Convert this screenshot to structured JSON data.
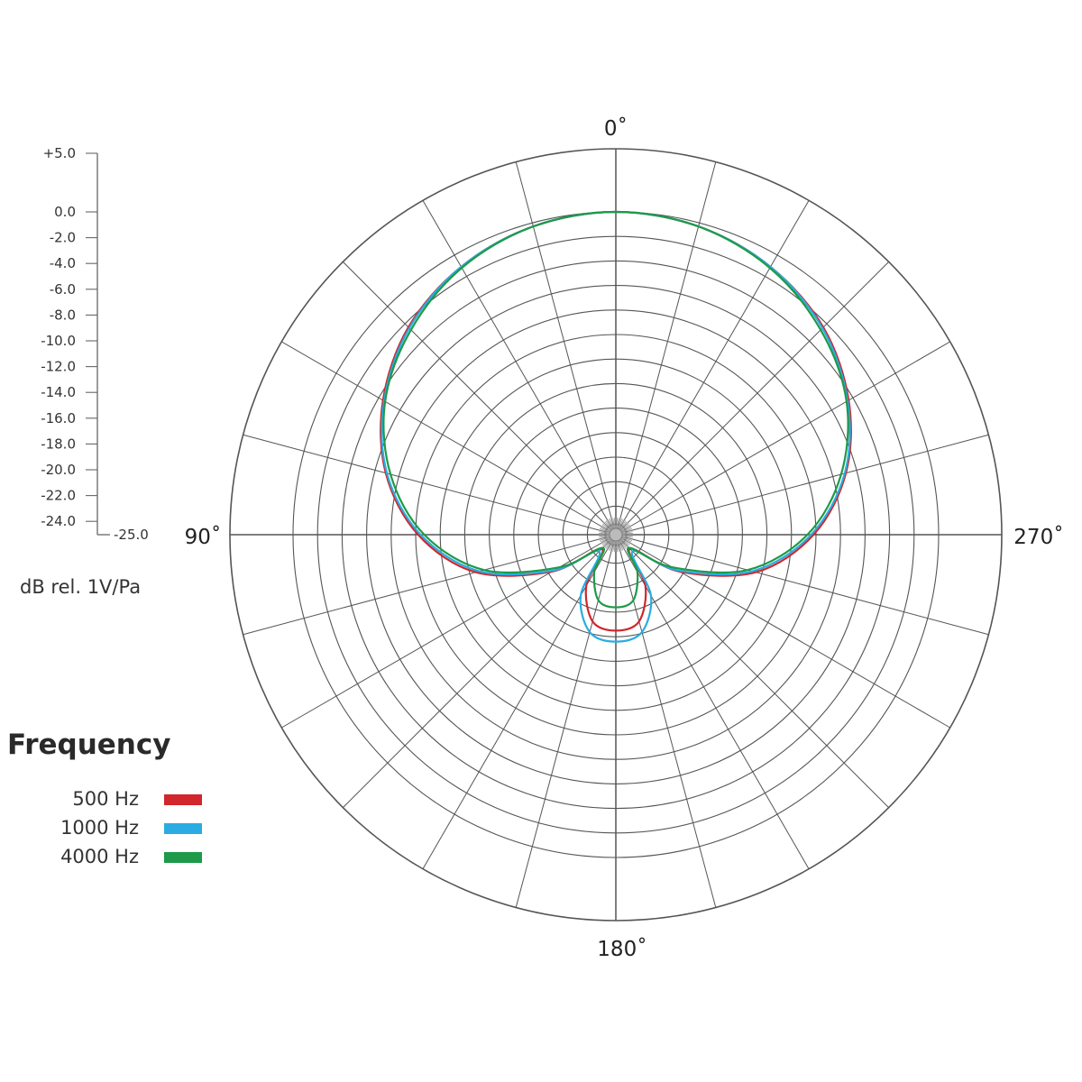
{
  "chart_data": {
    "type": "polar",
    "angle_labels": [
      {
        "angle": 0,
        "text": "0˚"
      },
      {
        "angle": 90,
        "text": "90˚"
      },
      {
        "angle": 180,
        "text": "180˚"
      },
      {
        "angle": 270,
        "text": "270˚"
      }
    ],
    "radial_axis": {
      "min": -25.0,
      "max": 5.0,
      "grid_step": 2,
      "tick_labels": [
        "+5.0",
        "0.0",
        "-2.0",
        "-4.0",
        "-6.0",
        "-8.0",
        "-10.0",
        "-12.0",
        "-14.0",
        "-16.0",
        "-18.0",
        "-20.0",
        "-22.0",
        "-24.0",
        "-25.0"
      ],
      "tick_values": [
        5,
        0,
        -2,
        -4,
        -6,
        -8,
        -10,
        -12,
        -14,
        -16,
        -18,
        -20,
        -22,
        -24,
        -25
      ],
      "unit_label": "dB rel. 1V/Pa"
    },
    "angular_grid_step_deg": 15,
    "legend": {
      "title": "Frequency",
      "placement": "left"
    },
    "series": [
      {
        "name": "500 Hz",
        "color": "#d0262c",
        "points": [
          {
            "angle": 0,
            "db": 0
          },
          {
            "angle": 15,
            "db": -0.3
          },
          {
            "angle": 30,
            "db": -1.1
          },
          {
            "angle": 45,
            "db": -2.4
          },
          {
            "angle": 60,
            "db": -4.4
          },
          {
            "angle": 75,
            "db": -6.9
          },
          {
            "angle": 90,
            "db": -10.2
          },
          {
            "angle": 105,
            "db": -14.5
          },
          {
            "angle": 120,
            "db": -20.3
          },
          {
            "angle": 135,
            "db": -24.7
          },
          {
            "angle": 150,
            "db": -21.5
          },
          {
            "angle": 165,
            "db": -19.0
          },
          {
            "angle": 180,
            "db": -18.5
          },
          {
            "angle": 195,
            "db": -19.0
          },
          {
            "angle": 210,
            "db": -21.5
          },
          {
            "angle": 225,
            "db": -24.7
          },
          {
            "angle": 240,
            "db": -20.3
          },
          {
            "angle": 255,
            "db": -14.5
          },
          {
            "angle": 270,
            "db": -10.2
          },
          {
            "angle": 285,
            "db": -6.9
          },
          {
            "angle": 300,
            "db": -4.4
          },
          {
            "angle": 315,
            "db": -2.4
          },
          {
            "angle": 330,
            "db": -1.1
          },
          {
            "angle": 345,
            "db": -0.3
          },
          {
            "angle": 360,
            "db": 0
          }
        ]
      },
      {
        "name": "1000 Hz",
        "color": "#2aace2",
        "points": [
          {
            "angle": 0,
            "db": 0
          },
          {
            "angle": 15,
            "db": -0.3
          },
          {
            "angle": 30,
            "db": -1.1
          },
          {
            "angle": 45,
            "db": -2.5
          },
          {
            "angle": 60,
            "db": -4.5
          },
          {
            "angle": 75,
            "db": -7.0
          },
          {
            "angle": 90,
            "db": -10.4
          },
          {
            "angle": 105,
            "db": -14.8
          },
          {
            "angle": 120,
            "db": -20.5
          },
          {
            "angle": 135,
            "db": -24.4
          },
          {
            "angle": 150,
            "db": -20.6
          },
          {
            "angle": 165,
            "db": -18.1
          },
          {
            "angle": 180,
            "db": -17.6
          },
          {
            "angle": 195,
            "db": -18.1
          },
          {
            "angle": 210,
            "db": -20.6
          },
          {
            "angle": 225,
            "db": -24.4
          },
          {
            "angle": 240,
            "db": -20.5
          },
          {
            "angle": 255,
            "db": -14.8
          },
          {
            "angle": 270,
            "db": -10.4
          },
          {
            "angle": 285,
            "db": -7.0
          },
          {
            "angle": 300,
            "db": -4.5
          },
          {
            "angle": 315,
            "db": -2.5
          },
          {
            "angle": 330,
            "db": -1.1
          },
          {
            "angle": 345,
            "db": -0.3
          },
          {
            "angle": 360,
            "db": 0
          }
        ]
      },
      {
        "name": "4000 Hz",
        "color": "#1e9a48",
        "points": [
          {
            "angle": 0,
            "db": 0
          },
          {
            "angle": 15,
            "db": -0.3
          },
          {
            "angle": 30,
            "db": -1.2
          },
          {
            "angle": 45,
            "db": -2.7
          },
          {
            "angle": 60,
            "db": -4.6
          },
          {
            "angle": 75,
            "db": -7.3
          },
          {
            "angle": 90,
            "db": -10.7
          },
          {
            "angle": 105,
            "db": -15.2
          },
          {
            "angle": 120,
            "db": -21.0
          },
          {
            "angle": 135,
            "db": -24.8
          },
          {
            "angle": 150,
            "db": -22.8
          },
          {
            "angle": 165,
            "db": -20.8
          },
          {
            "angle": 180,
            "db": -20.4
          },
          {
            "angle": 195,
            "db": -20.8
          },
          {
            "angle": 210,
            "db": -22.8
          },
          {
            "angle": 225,
            "db": -24.8
          },
          {
            "angle": 240,
            "db": -21.0
          },
          {
            "angle": 255,
            "db": -15.2
          },
          {
            "angle": 270,
            "db": -10.7
          },
          {
            "angle": 285,
            "db": -7.3
          },
          {
            "angle": 300,
            "db": -4.6
          },
          {
            "angle": 315,
            "db": -2.7
          },
          {
            "angle": 330,
            "db": -1.2
          },
          {
            "angle": 345,
            "db": -0.3
          },
          {
            "angle": 360,
            "db": 0
          }
        ]
      }
    ]
  }
}
